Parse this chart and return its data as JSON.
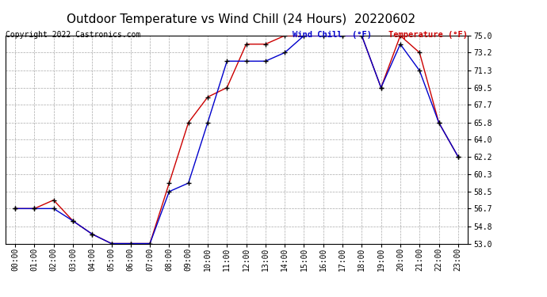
{
  "title": "Outdoor Temperature vs Wind Chill (24 Hours)  20220602",
  "copyright": "Copyright 2022 Castronics.com",
  "legend_wind_chill": "Wind Chill  (°F)",
  "legend_temperature": "Temperature (°F)",
  "x_labels": [
    "00:00",
    "01:00",
    "02:00",
    "03:00",
    "04:00",
    "05:00",
    "06:00",
    "07:00",
    "08:00",
    "09:00",
    "10:00",
    "11:00",
    "12:00",
    "13:00",
    "14:00",
    "15:00",
    "16:00",
    "17:00",
    "18:00",
    "19:00",
    "20:00",
    "21:00",
    "22:00",
    "23:00"
  ],
  "temperature": [
    56.7,
    56.7,
    57.6,
    55.4,
    54.0,
    53.0,
    53.0,
    53.0,
    59.4,
    65.8,
    68.5,
    69.5,
    74.1,
    74.1,
    75.0,
    75.0,
    75.0,
    75.0,
    75.0,
    69.5,
    75.0,
    73.2,
    65.8,
    62.2
  ],
  "wind_chill": [
    56.7,
    56.7,
    56.7,
    55.4,
    54.0,
    53.0,
    53.0,
    53.0,
    58.5,
    59.4,
    65.8,
    72.3,
    72.3,
    72.3,
    73.2,
    75.0,
    75.0,
    75.0,
    75.0,
    69.5,
    74.1,
    71.3,
    65.8,
    62.2
  ],
  "ylim": [
    53.0,
    75.0
  ],
  "yticks": [
    53.0,
    54.8,
    56.7,
    58.5,
    60.3,
    62.2,
    64.0,
    65.8,
    67.7,
    69.5,
    71.3,
    73.2,
    75.0
  ],
  "temp_color": "#cc0000",
  "wind_chill_color": "#0000cc",
  "background_color": "#ffffff",
  "grid_color": "#aaaaaa",
  "title_fontsize": 11,
  "label_fontsize": 7,
  "copyright_fontsize": 7
}
